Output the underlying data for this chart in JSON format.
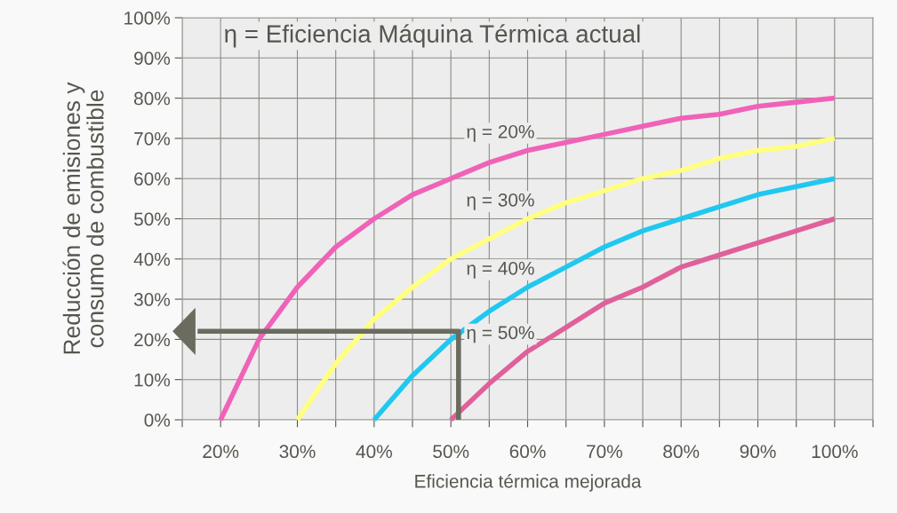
{
  "chart_data": {
    "type": "line",
    "xlabel": "Eficiencia térmica mejorada",
    "ylabel": "Reducción de emisiones y\nconsumo de combustible",
    "annotations": [
      "η = Eficiencia Máquina Térmica actual"
    ],
    "series": [
      {
        "name": "η = 20%",
        "color": "#f062b8",
        "x": [
          20,
          25,
          30,
          35,
          40,
          45,
          50,
          55,
          60,
          65,
          70,
          75,
          80,
          85,
          90,
          95,
          100
        ],
        "values": [
          0,
          20,
          33,
          43,
          50,
          56,
          60,
          64,
          67,
          69,
          71,
          73,
          75,
          76,
          78,
          79,
          80
        ]
      },
      {
        "name": "η = 30%",
        "color": "#ffff80",
        "x": [
          30,
          35,
          40,
          45,
          50,
          55,
          60,
          65,
          70,
          75,
          80,
          85,
          90,
          95,
          100
        ],
        "values": [
          0,
          14,
          25,
          33,
          40,
          45,
          50,
          54,
          57,
          60,
          62,
          65,
          67,
          68,
          70
        ]
      },
      {
        "name": "η = 40%",
        "color": "#20c8f0",
        "x": [
          40,
          45,
          50,
          55,
          60,
          65,
          70,
          75,
          80,
          85,
          90,
          95,
          100
        ],
        "values": [
          0,
          11,
          20,
          27,
          33,
          38,
          43,
          47,
          50,
          53,
          56,
          58,
          60
        ]
      },
      {
        "name": "η = 50%",
        "color": "#e0609a",
        "x": [
          50,
          55,
          60,
          65,
          70,
          75,
          80,
          85,
          90,
          95,
          100
        ],
        "values": [
          0,
          9,
          17,
          23,
          29,
          33,
          38,
          41,
          44,
          47,
          50
        ]
      },
      {
        "color": "#6b6b5f",
        "x": [
          51,
          51,
          17
        ],
        "values": [
          0,
          22,
          22
        ]
      }
    ],
    "xlim": [
      15,
      105
    ],
    "ylim": [
      0,
      100
    ],
    "xticks": [
      {
        "value": 15,
        "label": null
      },
      {
        "value": 20,
        "label": "20%"
      },
      {
        "value": 25,
        "label": null
      },
      {
        "value": 30,
        "label": "30%"
      },
      {
        "value": 35,
        "label": null
      },
      {
        "value": 40,
        "label": "40%"
      },
      {
        "value": 45,
        "label": null
      },
      {
        "value": 50,
        "label": "50%"
      },
      {
        "value": 55,
        "label": null
      },
      {
        "value": 60,
        "label": "60%"
      },
      {
        "value": 65,
        "label": null
      },
      {
        "value": 70,
        "label": "70%"
      },
      {
        "value": 75,
        "label": null
      },
      {
        "value": 80,
        "label": "80%"
      },
      {
        "value": 85,
        "label": null
      },
      {
        "value": 90,
        "label": "90%"
      },
      {
        "value": 95,
        "label": null
      },
      {
        "value": 100,
        "label": "100%"
      },
      {
        "value": 105,
        "label": null
      }
    ],
    "yticks": [
      {
        "value": 0,
        "label": "0%"
      },
      {
        "value": 10,
        "label": "10%"
      },
      {
        "value": 20,
        "label": "20%"
      },
      {
        "value": 30,
        "label": "30%"
      },
      {
        "value": 40,
        "label": "40%"
      },
      {
        "value": 50,
        "label": "50%"
      },
      {
        "value": 60,
        "label": "60%"
      },
      {
        "value": 70,
        "label": "70%"
      },
      {
        "value": 80,
        "label": "80%"
      },
      {
        "value": 90,
        "label": "90%"
      },
      {
        "value": 100,
        "label": "100%"
      }
    ],
    "grid": true,
    "legend": false,
    "marker": "none",
    "line_style": "solid"
  }
}
